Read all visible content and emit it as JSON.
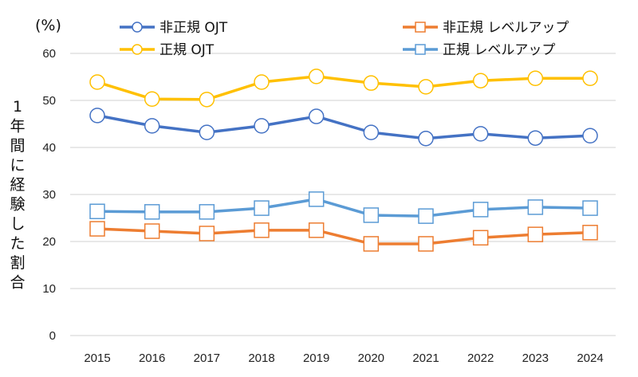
{
  "chart_data": {
    "type": "line",
    "title": "",
    "unit_label": "(%)",
    "xlabel": "",
    "ylabel": "1年間に経験した割合",
    "ylim": [
      0,
      60
    ],
    "yticks": [
      0,
      10,
      20,
      30,
      40,
      50,
      60
    ],
    "grid": true,
    "legend_placement": "top",
    "categories": [
      "2015",
      "2016",
      "2017",
      "2018",
      "2019",
      "2020",
      "2021",
      "2022",
      "2023",
      "2024"
    ],
    "series": [
      {
        "name": "非正規 OJT",
        "color": "#4472c4",
        "marker": "circle",
        "values": [
          46.8,
          44.6,
          43.2,
          44.6,
          46.6,
          43.2,
          41.9,
          42.9,
          42.0,
          42.5
        ]
      },
      {
        "name": "正規 OJT",
        "color": "#ffc000",
        "marker": "circle",
        "values": [
          53.9,
          50.3,
          50.2,
          53.9,
          55.1,
          53.7,
          52.9,
          54.2,
          54.7,
          54.7
        ]
      },
      {
        "name": "非正規 レベルアップ",
        "color": "#ed7d31",
        "marker": "square",
        "values": [
          22.7,
          22.2,
          21.7,
          22.4,
          22.4,
          19.5,
          19.5,
          20.8,
          21.5,
          21.9
        ]
      },
      {
        "name": "正規 レベルアップ",
        "color": "#5b9bd5",
        "marker": "square",
        "values": [
          26.4,
          26.3,
          26.3,
          27.1,
          29.0,
          25.6,
          25.4,
          26.8,
          27.3,
          27.1
        ]
      }
    ]
  }
}
